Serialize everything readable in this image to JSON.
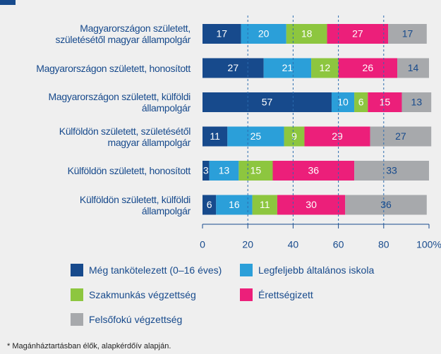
{
  "chart_data": {
    "type": "stacked_barh",
    "categories": [
      "Magyarországon született,\nszületésétől magyar állampolgár",
      "Magyarországon született, honosított",
      "Magyarországon született, külföldi\nállampolgár",
      "Külföldön született, születésétől\nmagyar állampolgár",
      "Külföldön született, honosított",
      "Külföldön született, külföldi\nállampolgár"
    ],
    "series": [
      {
        "name": "Még tankötelezett (0–16 éves)",
        "color": "#174a8c",
        "label_color": "#ffffff",
        "values": [
          17,
          27,
          57,
          11,
          3,
          6
        ]
      },
      {
        "name": "Legfeljebb általános iskola",
        "color": "#2b9fd9",
        "label_color": "#ffffff",
        "values": [
          20,
          21,
          10,
          25,
          13,
          16
        ]
      },
      {
        "name": "Szakmunkás végzettség",
        "color": "#8dc63f",
        "label_color": "#ffffff",
        "values": [
          18,
          12,
          6,
          9,
          15,
          11
        ]
      },
      {
        "name": "Érettségizett",
        "color": "#ec1f7a",
        "label_color": "#ffffff",
        "values": [
          27,
          26,
          15,
          29,
          36,
          30
        ]
      },
      {
        "name": "Felsőfokú végzettség",
        "color": "#a7a9ac",
        "label_color": "#174a8c",
        "values": [
          17,
          14,
          13,
          27,
          33,
          36
        ]
      }
    ],
    "xlim": [
      0,
      100
    ],
    "xticks": [
      0,
      20,
      40,
      60,
      80,
      {
        "value": 100,
        "label": "100%"
      }
    ],
    "grid": true,
    "note": "* Magánháztartásban élők, alapkérdőív alapján."
  }
}
